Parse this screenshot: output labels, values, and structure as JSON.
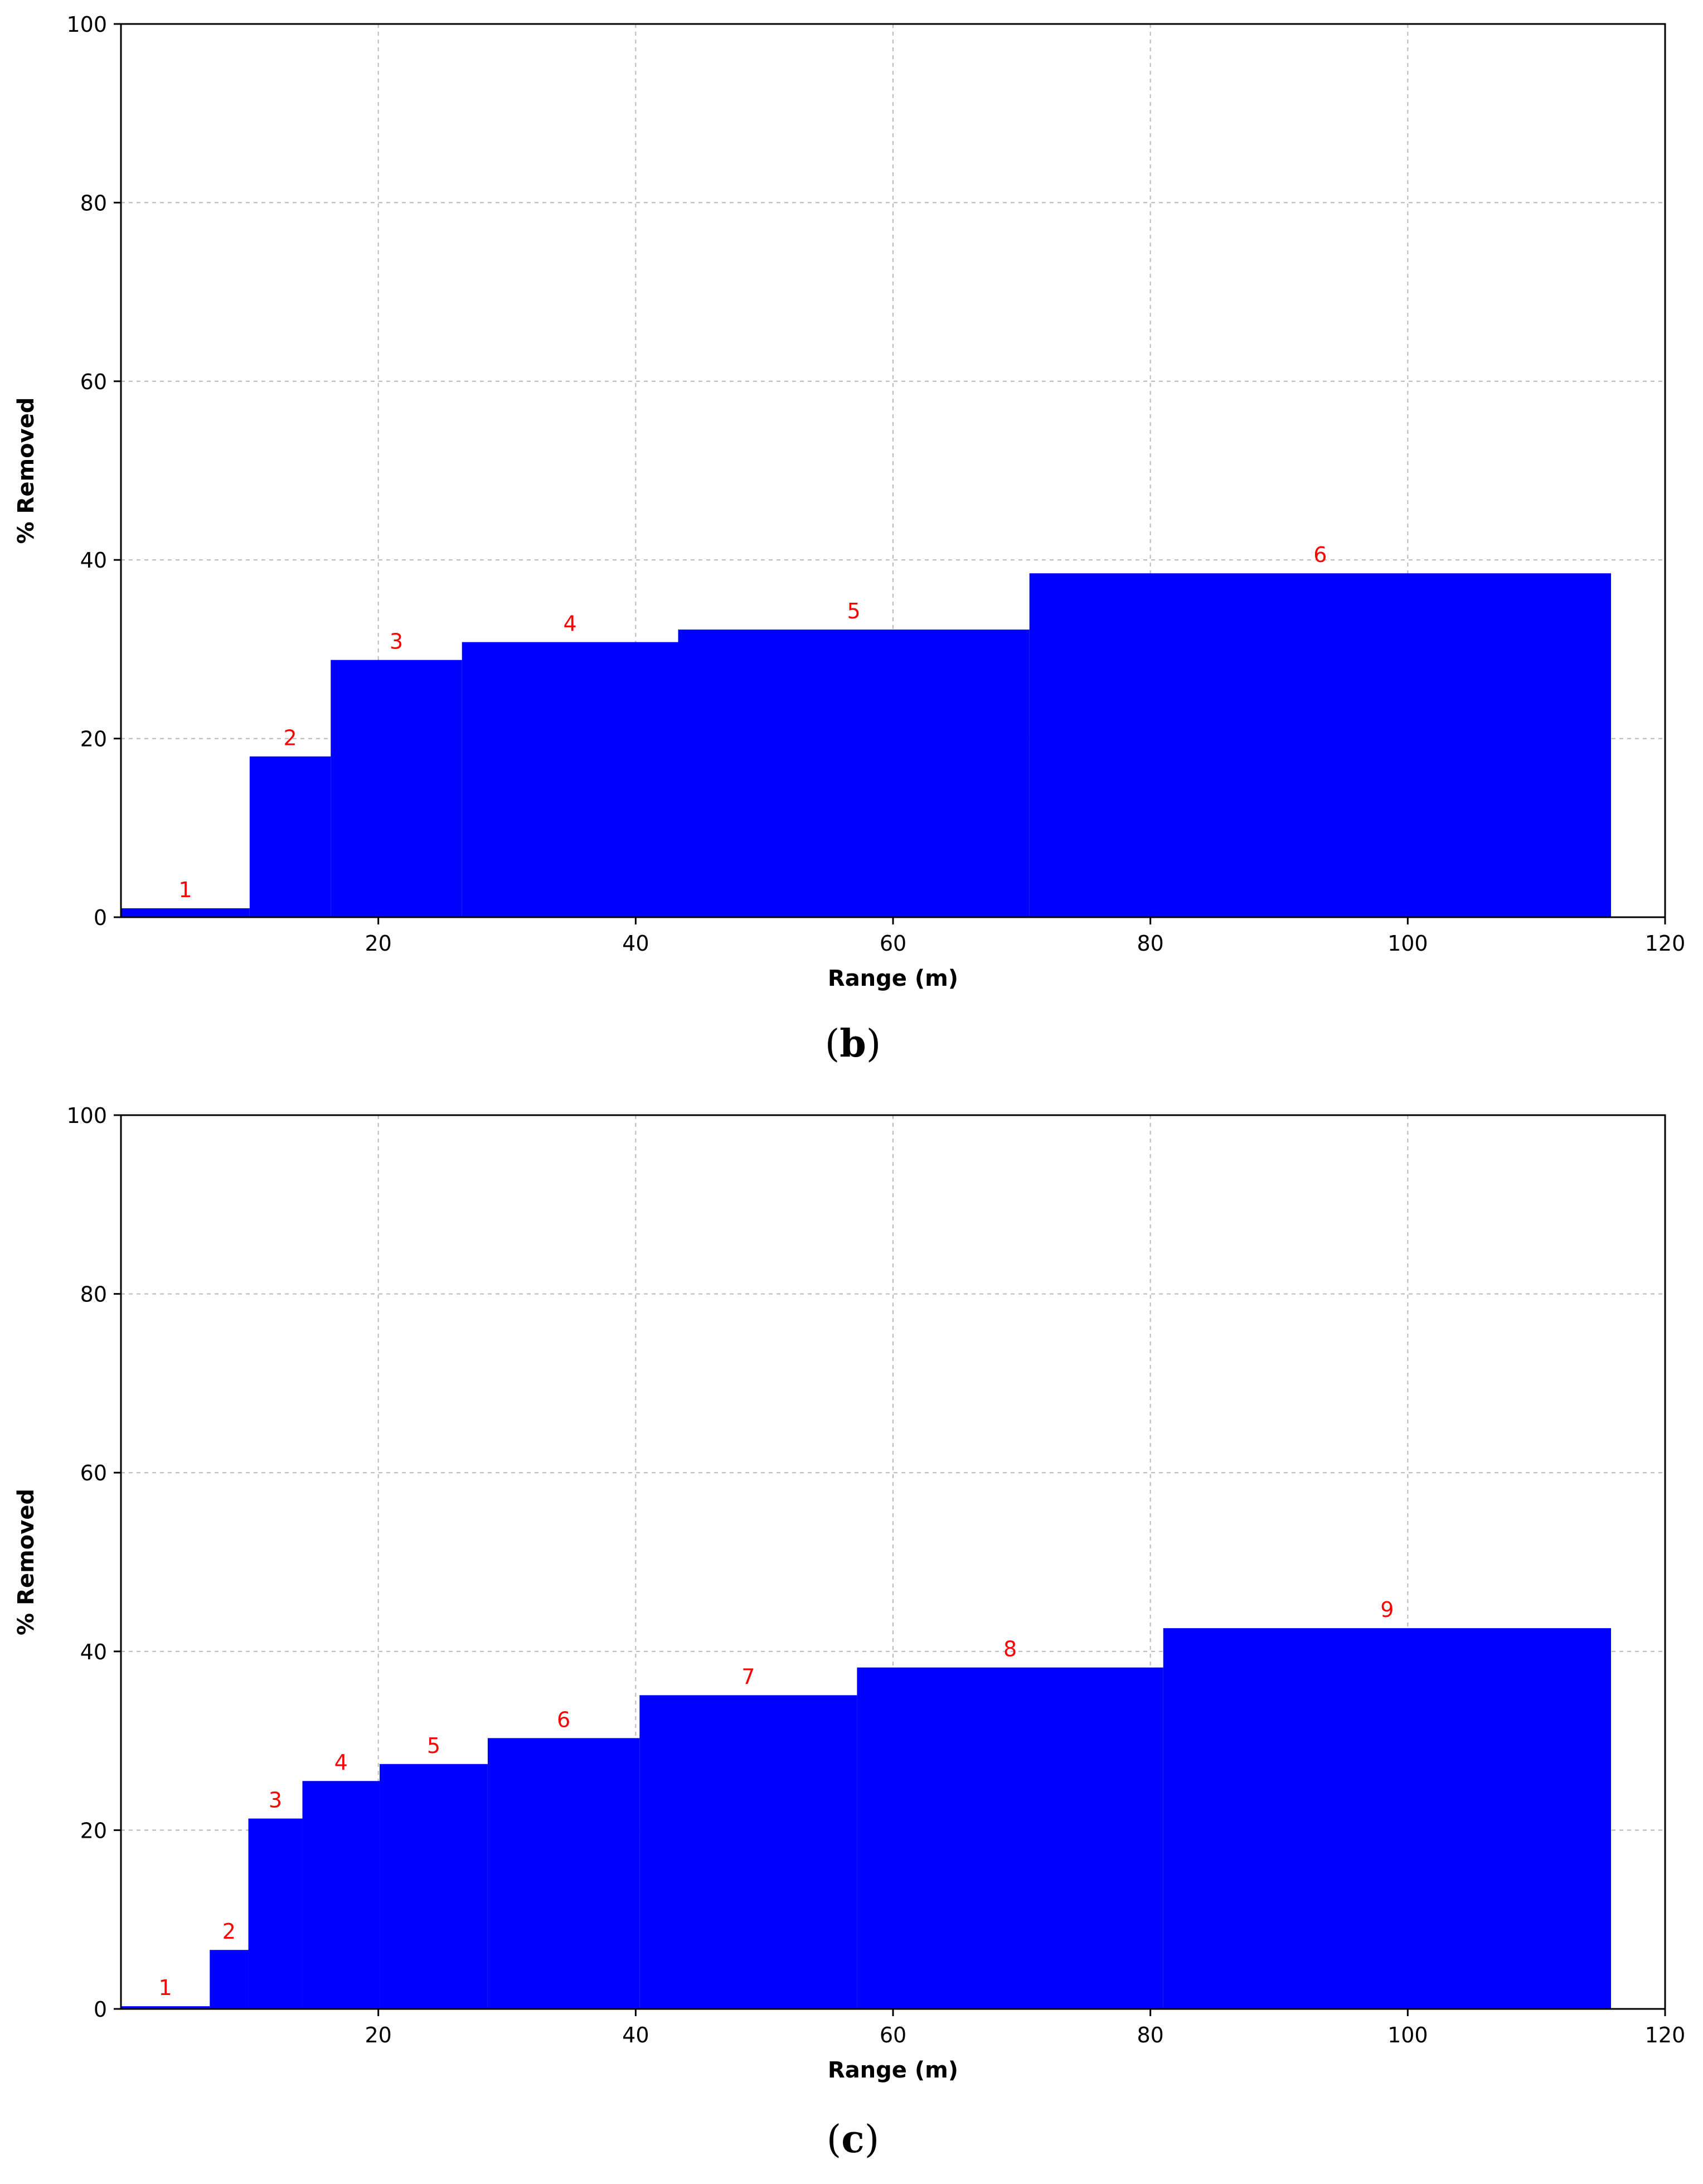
{
  "chart_data": [
    {
      "type": "bar",
      "panel": "b",
      "caption": {
        "open": "(",
        "letter": "b",
        "close": ")"
      },
      "xlabel": "Range (m)",
      "ylabel": "% Removed",
      "xlim": [
        0,
        120
      ],
      "ylim": [
        0,
        100
      ],
      "xticks": [
        20,
        40,
        60,
        80,
        100,
        120
      ],
      "yticks": [
        0,
        20,
        40,
        60,
        80,
        100
      ],
      "grid": true,
      "bar_color": "#0000ff",
      "label_color": "#ff0000",
      "bins": [
        {
          "label": "1",
          "x_start": 0,
          "x_end": 10,
          "value": 1
        },
        {
          "label": "2",
          "x_start": 10,
          "x_end": 16.3,
          "value": 18
        },
        {
          "label": "3",
          "x_start": 16.3,
          "x_end": 26.5,
          "value": 28.8
        },
        {
          "label": "4",
          "x_start": 26.5,
          "x_end": 43.3,
          "value": 30.8
        },
        {
          "label": "5",
          "x_start": 43.3,
          "x_end": 70.6,
          "value": 32.2
        },
        {
          "label": "6",
          "x_start": 70.6,
          "x_end": 115.8,
          "value": 38.5
        }
      ]
    },
    {
      "type": "bar",
      "panel": "c",
      "caption": {
        "open": "(",
        "letter": "c",
        "close": ")"
      },
      "xlabel": "Range (m)",
      "ylabel": "% Removed",
      "xlim": [
        0,
        120
      ],
      "ylim": [
        0,
        100
      ],
      "xticks": [
        20,
        40,
        60,
        80,
        100,
        120
      ],
      "yticks": [
        0,
        20,
        40,
        60,
        80,
        100
      ],
      "grid": true,
      "bar_color": "#0000ff",
      "label_color": "#ff0000",
      "bins": [
        {
          "label": "1",
          "x_start": 0,
          "x_end": 6.9,
          "value": 0.3
        },
        {
          "label": "2",
          "x_start": 6.9,
          "x_end": 9.9,
          "value": 6.6
        },
        {
          "label": "3",
          "x_start": 9.9,
          "x_end": 14.1,
          "value": 21.3
        },
        {
          "label": "4",
          "x_start": 14.1,
          "x_end": 20.1,
          "value": 25.5
        },
        {
          "label": "5",
          "x_start": 20.1,
          "x_end": 28.5,
          "value": 27.4
        },
        {
          "label": "6",
          "x_start": 28.5,
          "x_end": 40.3,
          "value": 30.3
        },
        {
          "label": "7",
          "x_start": 40.3,
          "x_end": 57.2,
          "value": 35.1
        },
        {
          "label": "8",
          "x_start": 57.2,
          "x_end": 81.0,
          "value": 38.2
        },
        {
          "label": "9",
          "x_start": 81.0,
          "x_end": 115.8,
          "value": 42.6
        }
      ]
    }
  ]
}
